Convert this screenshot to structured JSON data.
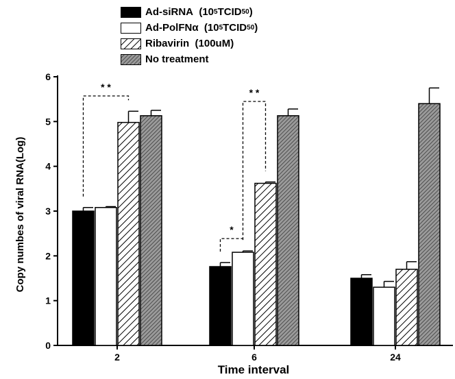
{
  "chart_data": {
    "type": "bar",
    "xlabel": "Time interval",
    "ylabel": "Copy numbes of viral RNA(Log)",
    "categories": [
      "2",
      "6",
      "24"
    ],
    "ylim": [
      0,
      6
    ],
    "yticks": [
      0,
      1,
      2,
      3,
      4,
      5,
      6
    ],
    "grid": false,
    "legend_position": "top",
    "series": [
      {
        "name": "Ad-siRNA",
        "name_dose": "10",
        "name_dose_exp": "5",
        "name_unit": "TCID",
        "name_unit_sub": "50",
        "fill": "solid-black",
        "values": [
          3.0,
          1.76,
          1.5
        ],
        "errors": [
          0.08,
          0.09,
          0.08
        ]
      },
      {
        "name": "Ad-PolFNα",
        "name_dose": "10",
        "name_dose_exp": "5",
        "name_unit": "TCID",
        "name_unit_sub": "50",
        "fill": "white",
        "values": [
          3.08,
          2.08,
          1.3
        ],
        "errors": [
          0.02,
          0.03,
          0.13
        ]
      },
      {
        "name": "Ribavirin",
        "name_suffix": "(100uM)",
        "fill": "diagonal-hatch",
        "values": [
          4.98,
          3.62,
          1.7
        ],
        "errors": [
          0.25,
          0.03,
          0.17
        ]
      },
      {
        "name": "No treatment",
        "fill": "dense-crosshatch",
        "values": [
          5.13,
          5.13,
          5.4
        ],
        "errors": [
          0.12,
          0.15,
          0.35
        ]
      }
    ],
    "annotations": [
      {
        "label": "* *",
        "category": "2",
        "from_series": 0,
        "to_series": 2
      },
      {
        "label": "*",
        "category": "6",
        "from_series": 0,
        "to_series": 1
      },
      {
        "label": "* *",
        "category": "6",
        "from_series": 1,
        "to_series": 2
      }
    ]
  }
}
